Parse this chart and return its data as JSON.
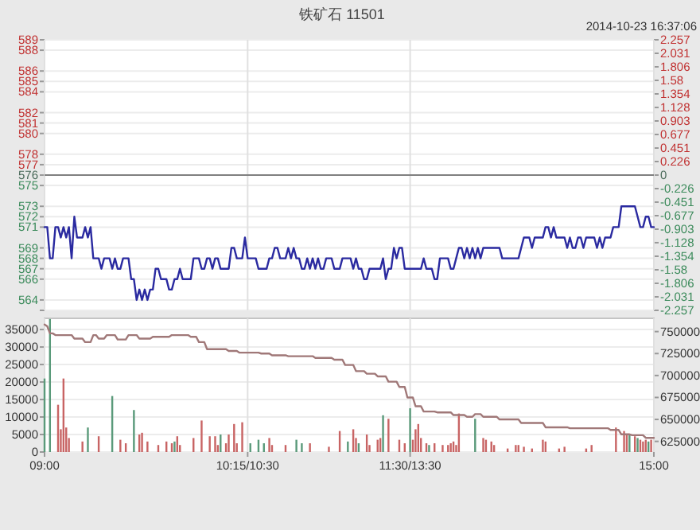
{
  "chart_data": [
    {
      "type": "line",
      "title": "铁矿石  11501",
      "annotations": [
        "2014-10-23 16:37:06"
      ],
      "categories": [
        null,
        null,
        null,
        null,
        null,
        null,
        null,
        null,
        null,
        null,
        null,
        null,
        null,
        null,
        null,
        null,
        null,
        null,
        null,
        null,
        null,
        null,
        null,
        null,
        null,
        null,
        null,
        null,
        null,
        null,
        null,
        null,
        null,
        null,
        null,
        null,
        null,
        null,
        null,
        null,
        null,
        null,
        null,
        null,
        null,
        null,
        null,
        null,
        null,
        null,
        null,
        null,
        null,
        null,
        null,
        null,
        null,
        null,
        null,
        null,
        null,
        null,
        null,
        null,
        null,
        null,
        null,
        null,
        null,
        null,
        null,
        null,
        null,
        null,
        null,
        null,
        null,
        null,
        null,
        null,
        null,
        null,
        null,
        null,
        null,
        null,
        null,
        null,
        null,
        null,
        null,
        null,
        null,
        null,
        null,
        null,
        null,
        null,
        null,
        null,
        null,
        null,
        null,
        null,
        null,
        null,
        null,
        null,
        null,
        null,
        null,
        null,
        null,
        null,
        null,
        null,
        null,
        null,
        null,
        null,
        null,
        null,
        null,
        null,
        null,
        null,
        null,
        null,
        null,
        null,
        null,
        null,
        null,
        null,
        null,
        null,
        null,
        null,
        null,
        null,
        null,
        null,
        null,
        null,
        null,
        null,
        null,
        null,
        null,
        null,
        null,
        null,
        null,
        null,
        null,
        null,
        null,
        null,
        null,
        null,
        null,
        null,
        null,
        null,
        null,
        null,
        null,
        null,
        null,
        null,
        null,
        null,
        null,
        null,
        null,
        null,
        null,
        null,
        null,
        null,
        null,
        null,
        null,
        null,
        null,
        null,
        null,
        null,
        null,
        null,
        null,
        null,
        null,
        null,
        null,
        null,
        null,
        null,
        null,
        null,
        null,
        null,
        null,
        null,
        null,
        null,
        null,
        null,
        null,
        null,
        null,
        null,
        null,
        null,
        null,
        null,
        null,
        null,
        null,
        null,
        null,
        null,
        null,
        null,
        null,
        null
      ],
      "ylim": [
        563,
        589
      ],
      "yticks": [
        {
          "value": 563,
          "label": null
        },
        564,
        566,
        567,
        568,
        569,
        571,
        572,
        573,
        575,
        576,
        577,
        578,
        580,
        581,
        582,
        584,
        585,
        586,
        588,
        589
      ],
      "y2lim": [
        -2.257,
        2.257
      ],
      "y2ticks": [
        -2.257,
        -2.031,
        -1.806,
        -1.58,
        -1.354,
        -1.128,
        -0.903,
        -0.677,
        -0.451,
        -0.226,
        0,
        0.226,
        0.451,
        0.677,
        0.903,
        1.128,
        1.354,
        1.58,
        1.806,
        2.031,
        2.257
      ],
      "tick_labels": "y",
      "grid": true,
      "ref_lines": [
        {
          "axis": "y",
          "value": 576,
          "color": "#808080"
        }
      ],
      "series": [
        {
          "color": "#2a2aa0",
          "values": [
            571,
            571,
            568,
            568,
            571,
            571,
            570,
            571,
            570,
            571,
            568,
            572,
            570,
            570,
            570,
            571,
            570,
            571,
            568,
            568,
            568,
            567,
            568,
            568,
            568,
            567,
            568,
            567,
            567,
            568,
            568,
            568,
            566,
            566,
            564,
            565,
            564,
            565,
            564,
            565,
            565,
            567,
            567,
            566,
            566,
            566,
            565,
            565,
            566,
            566,
            567,
            566,
            566,
            566,
            566,
            568,
            568,
            568,
            567,
            567,
            568,
            568,
            567,
            568,
            568,
            567,
            567,
            567,
            567,
            569,
            569,
            568,
            568,
            568,
            570,
            568,
            568,
            568,
            568,
            567,
            567,
            567,
            567,
            568,
            568,
            569,
            569,
            568,
            568,
            568,
            569,
            568,
            569,
            568,
            568,
            567,
            567,
            568,
            567,
            568,
            567,
            568,
            567,
            567,
            568,
            568,
            568,
            567,
            567,
            567,
            568,
            568,
            568,
            568,
            567,
            568,
            567,
            567,
            566,
            566,
            567,
            567,
            567,
            567,
            567,
            568,
            566,
            567,
            567,
            569,
            568,
            569,
            569,
            567,
            567,
            567,
            567,
            567,
            567,
            567,
            568,
            567,
            567,
            567,
            566,
            566,
            568,
            568,
            568,
            568,
            567,
            567,
            568,
            569,
            569,
            568,
            569,
            568,
            569,
            568,
            569,
            568,
            569,
            569,
            569,
            569,
            569,
            569,
            569,
            568,
            568,
            568,
            568,
            568,
            568,
            568,
            569,
            570,
            570,
            570,
            569,
            570,
            570,
            570,
            570,
            571,
            571,
            570,
            571,
            570,
            570,
            570,
            570,
            569,
            570,
            569,
            569,
            570,
            570,
            569,
            570,
            570,
            570,
            570,
            569,
            570,
            569,
            570,
            570,
            570,
            571,
            571,
            571,
            573,
            573,
            573,
            573,
            573,
            573,
            572,
            571,
            571,
            572,
            572,
            571,
            571
          ]
        }
      ]
    },
    {
      "type": "bar",
      "categories": [
        "09:00",
        null,
        null,
        null,
        null,
        null,
        null,
        null,
        null,
        null,
        null,
        null,
        null,
        null,
        null,
        null,
        null,
        null,
        null,
        null,
        null,
        null,
        null,
        null,
        null,
        null,
        null,
        null,
        null,
        null,
        null,
        null,
        null,
        null,
        null,
        null,
        null,
        null,
        null,
        null,
        null,
        null,
        null,
        null,
        null,
        null,
        null,
        null,
        null,
        null,
        null,
        null,
        null,
        null,
        null,
        null,
        null,
        null,
        null,
        null,
        null,
        null,
        null,
        null,
        null,
        null,
        null,
        null,
        null,
        null,
        null,
        null,
        null,
        null,
        null,
        "10:15/10:30",
        null,
        null,
        null,
        null,
        null,
        null,
        null,
        null,
        null,
        null,
        null,
        null,
        null,
        null,
        null,
        null,
        null,
        null,
        null,
        null,
        null,
        null,
        null,
        null,
        null,
        null,
        null,
        null,
        null,
        null,
        null,
        null,
        null,
        null,
        null,
        null,
        null,
        null,
        null,
        null,
        null,
        null,
        null,
        null,
        null,
        null,
        null,
        null,
        null,
        null,
        null,
        null,
        null,
        null,
        null,
        null,
        null,
        null,
        null,
        "11:30/13:30",
        null,
        null,
        null,
        null,
        null,
        null,
        null,
        null,
        null,
        null,
        null,
        null,
        null,
        null,
        null,
        null,
        null,
        null,
        null,
        null,
        null,
        null,
        null,
        null,
        null,
        null,
        null,
        null,
        null,
        null,
        null,
        null,
        null,
        null,
        null,
        null,
        null,
        null,
        null,
        null,
        null,
        null,
        null,
        null,
        null,
        null,
        null,
        null,
        null,
        null,
        null,
        null,
        null,
        null,
        null,
        null,
        null,
        null,
        null,
        null,
        null,
        null,
        null,
        null,
        null,
        null,
        null,
        null,
        null,
        null,
        null,
        null,
        null,
        null,
        null,
        null,
        null,
        null,
        null,
        null,
        null,
        null,
        null,
        null,
        null,
        null,
        null,
        null,
        null,
        "15:00"
      ],
      "ylim": [
        0,
        38200
      ],
      "yticks": [
        0,
        5000,
        10000,
        15000,
        20000,
        25000,
        30000,
        35000
      ],
      "y2lim": [
        612900,
        765100
      ],
      "y2ticks": [
        625000,
        650000,
        675000,
        700000,
        725000,
        750000
      ],
      "grid": true,
      "series": [
        {
          "values": [
            21000,
            null,
            38000,
            null,
            null,
            13500,
            6500,
            21000,
            7000,
            4000,
            null,
            null,
            null,
            null,
            3000,
            null,
            7000,
            null,
            null,
            null,
            4500,
            null,
            null,
            null,
            null,
            16000,
            null,
            null,
            3500,
            null,
            2500,
            null,
            null,
            12000,
            null,
            5000,
            5500,
            null,
            3000,
            null,
            null,
            null,
            2000,
            null,
            null,
            3000,
            null,
            2500,
            3000,
            4500,
            2000,
            null,
            null,
            null,
            null,
            4000,
            null,
            null,
            9000,
            null,
            null,
            4500,
            null,
            4500,
            2000,
            5000,
            null,
            2500,
            5000,
            null,
            8000,
            2500,
            null,
            8500,
            null,
            null,
            2500,
            null,
            null,
            3500,
            null,
            2500,
            null,
            4000,
            2000,
            null,
            null,
            null,
            null,
            2000,
            null,
            null,
            null,
            3500,
            null,
            2500,
            null,
            null,
            2500,
            null,
            null,
            null,
            null,
            null,
            null,
            1500,
            null,
            null,
            null,
            6000,
            null,
            null,
            3000,
            null,
            6500,
            4000,
            2500,
            null,
            null,
            5000,
            2000,
            null,
            null,
            3500,
            4000,
            10500,
            null,
            9500,
            null,
            null,
            null,
            3500,
            null,
            2500,
            null,
            12500,
            3500,
            6500,
            8000,
            4000,
            null,
            2500,
            2000,
            null,
            2500,
            null,
            null,
            2000,
            null,
            2000,
            2500,
            3000,
            2000,
            11000,
            null,
            null,
            null,
            null,
            null,
            9500,
            null,
            null,
            4000,
            3500,
            null,
            3000,
            2000,
            null,
            null,
            null,
            null,
            1000,
            null,
            null,
            2000,
            2000,
            null,
            1500,
            null,
            null,
            1000,
            null,
            null,
            null,
            3500,
            3000,
            null,
            null,
            null,
            null,
            1000,
            null,
            1500,
            null,
            null,
            null,
            null,
            null,
            null,
            null,
            1000,
            null,
            2000,
            null,
            null,
            null,
            null,
            null,
            null,
            null,
            null,
            7000,
            null,
            null,
            6000,
            5000,
            5000,
            null,
            4500,
            4000,
            3500,
            3000,
            3500,
            3000,
            3500,
            null
          ],
          "colors": [
            "#5a9a7a",
            null,
            "#5a9a7a",
            null,
            null,
            "#c86464",
            "#c86464",
            "#c86464",
            "#c86464",
            "#c86464",
            null,
            null,
            null,
            null,
            "#c86464",
            null,
            "#5a9a7a",
            null,
            null,
            null,
            "#c86464",
            null,
            null,
            null,
            null,
            "#5a9a7a",
            null,
            null,
            "#c86464",
            null,
            "#c86464",
            null,
            null,
            "#5a9a7a",
            null,
            "#c86464",
            "#c86464",
            null,
            "#c86464",
            null,
            null,
            null,
            "#c86464",
            null,
            null,
            "#c86464",
            null,
            "#c86464",
            "#5a9a7a",
            "#c86464",
            "#c86464",
            null,
            null,
            null,
            null,
            "#c86464",
            null,
            null,
            "#c86464",
            null,
            null,
            "#c86464",
            null,
            "#c86464",
            "#c86464",
            "#5a9a7a",
            null,
            "#c86464",
            "#c86464",
            null,
            "#c86464",
            "#c86464",
            null,
            "#c86464",
            null,
            null,
            "#5a9a7a",
            null,
            null,
            "#5a9a7a",
            null,
            "#5a9a7a",
            null,
            "#c86464",
            "#c86464",
            null,
            null,
            null,
            null,
            "#c86464",
            null,
            null,
            null,
            "#5a9a7a",
            null,
            "#5a9a7a",
            null,
            null,
            "#c86464",
            null,
            null,
            null,
            null,
            null,
            null,
            "#c86464",
            null,
            null,
            null,
            "#c86464",
            null,
            null,
            "#5a9a7a",
            null,
            "#c86464",
            "#c86464",
            "#5a9a7a",
            null,
            null,
            "#c86464",
            "#c86464",
            null,
            null,
            "#c86464",
            "#c86464",
            "#5a9a7a",
            null,
            "#c86464",
            null,
            null,
            null,
            "#c86464",
            null,
            "#c86464",
            null,
            "#5a9a7a",
            "#c86464",
            "#c86464",
            "#c86464",
            "#c86464",
            null,
            "#c86464",
            "#5a9a7a",
            null,
            "#c86464",
            null,
            null,
            "#c86464",
            null,
            "#c86464",
            "#c86464",
            "#c86464",
            "#c86464",
            "#c86464",
            null,
            null,
            null,
            null,
            null,
            "#5a9a7a",
            null,
            null,
            "#c86464",
            "#c86464",
            null,
            "#c86464",
            "#c86464",
            null,
            null,
            null,
            null,
            "#c86464",
            null,
            null,
            "#c86464",
            "#c86464",
            null,
            "#c86464",
            null,
            null,
            "#c86464",
            null,
            null,
            null,
            "#c86464",
            "#c86464",
            null,
            null,
            null,
            null,
            "#c86464",
            null,
            "#c86464",
            null,
            null,
            null,
            null,
            null,
            null,
            null,
            "#c86464",
            null,
            "#c86464",
            null,
            null,
            null,
            null,
            null,
            null,
            null,
            null,
            "#c86464",
            null,
            null,
            "#c86464",
            "#c86464",
            "#5a9a7a",
            null,
            "#c86464",
            "#5a9a7a",
            "#c86464",
            "#c86464",
            "#c86464",
            "#5a9a7a",
            "#c86464",
            null
          ]
        },
        {
          "type": "line",
          "axis": "y2",
          "color": "#a07878",
          "values": [
            758000,
            756000,
            748000,
            748000,
            746000,
            746000,
            746000,
            746000,
            746000,
            746000,
            746000,
            742000,
            742000,
            742000,
            742000,
            738000,
            738000,
            738000,
            746000,
            746000,
            742000,
            742000,
            742000,
            746000,
            746000,
            746000,
            746000,
            741000,
            741000,
            741000,
            741000,
            746000,
            746000,
            746000,
            746000,
            742000,
            742000,
            742000,
            742000,
            742000,
            744000,
            744000,
            744000,
            744000,
            744000,
            744000,
            744000,
            746000,
            746000,
            746000,
            746000,
            746000,
            746000,
            746000,
            744000,
            744000,
            744000,
            738000,
            738000,
            738000,
            730000,
            730000,
            730000,
            730000,
            730000,
            730000,
            730000,
            730000,
            728000,
            728000,
            728000,
            728000,
            726000,
            726000,
            726000,
            726000,
            726000,
            726000,
            726000,
            726000,
            725000,
            725000,
            725000,
            725000,
            723000,
            723000,
            723000,
            723000,
            723000,
            723000,
            722000,
            722000,
            722000,
            722000,
            722000,
            722000,
            722000,
            722000,
            722000,
            722000,
            720000,
            720000,
            720000,
            720000,
            720000,
            720000,
            720000,
            718000,
            718000,
            718000,
            718000,
            712000,
            712000,
            712000,
            712000,
            705000,
            705000,
            705000,
            705000,
            702000,
            702000,
            702000,
            702000,
            699000,
            699000,
            699000,
            699000,
            693000,
            693000,
            693000,
            693000,
            687000,
            687000,
            687000,
            675000,
            675000,
            675000,
            665000,
            665000,
            665000,
            659000,
            659000,
            659000,
            659000,
            659000,
            658000,
            658000,
            658000,
            658000,
            658000,
            658000,
            655000,
            655000,
            655000,
            655000,
            655000,
            653000,
            653000,
            653000,
            656000,
            656000,
            656000,
            653000,
            653000,
            653000,
            653000,
            653000,
            653000,
            650000,
            650000,
            650000,
            650000,
            650000,
            650000,
            650000,
            650000,
            646000,
            646000,
            646000,
            646000,
            646000,
            646000,
            646000,
            646000,
            646000,
            641000,
            641000,
            641000,
            641000,
            641000,
            641000,
            641000,
            641000,
            641000,
            640000,
            640000,
            640000,
            640000,
            640000,
            640000,
            640000,
            640000,
            640000,
            640000,
            640000,
            640000,
            640000,
            640000,
            640000,
            638000,
            638000,
            638000,
            638000,
            633000,
            633000,
            633000,
            633000,
            632000,
            632000,
            632000,
            632000,
            632000,
            629000,
            629000,
            629000,
            629000
          ]
        }
      ]
    }
  ]
}
